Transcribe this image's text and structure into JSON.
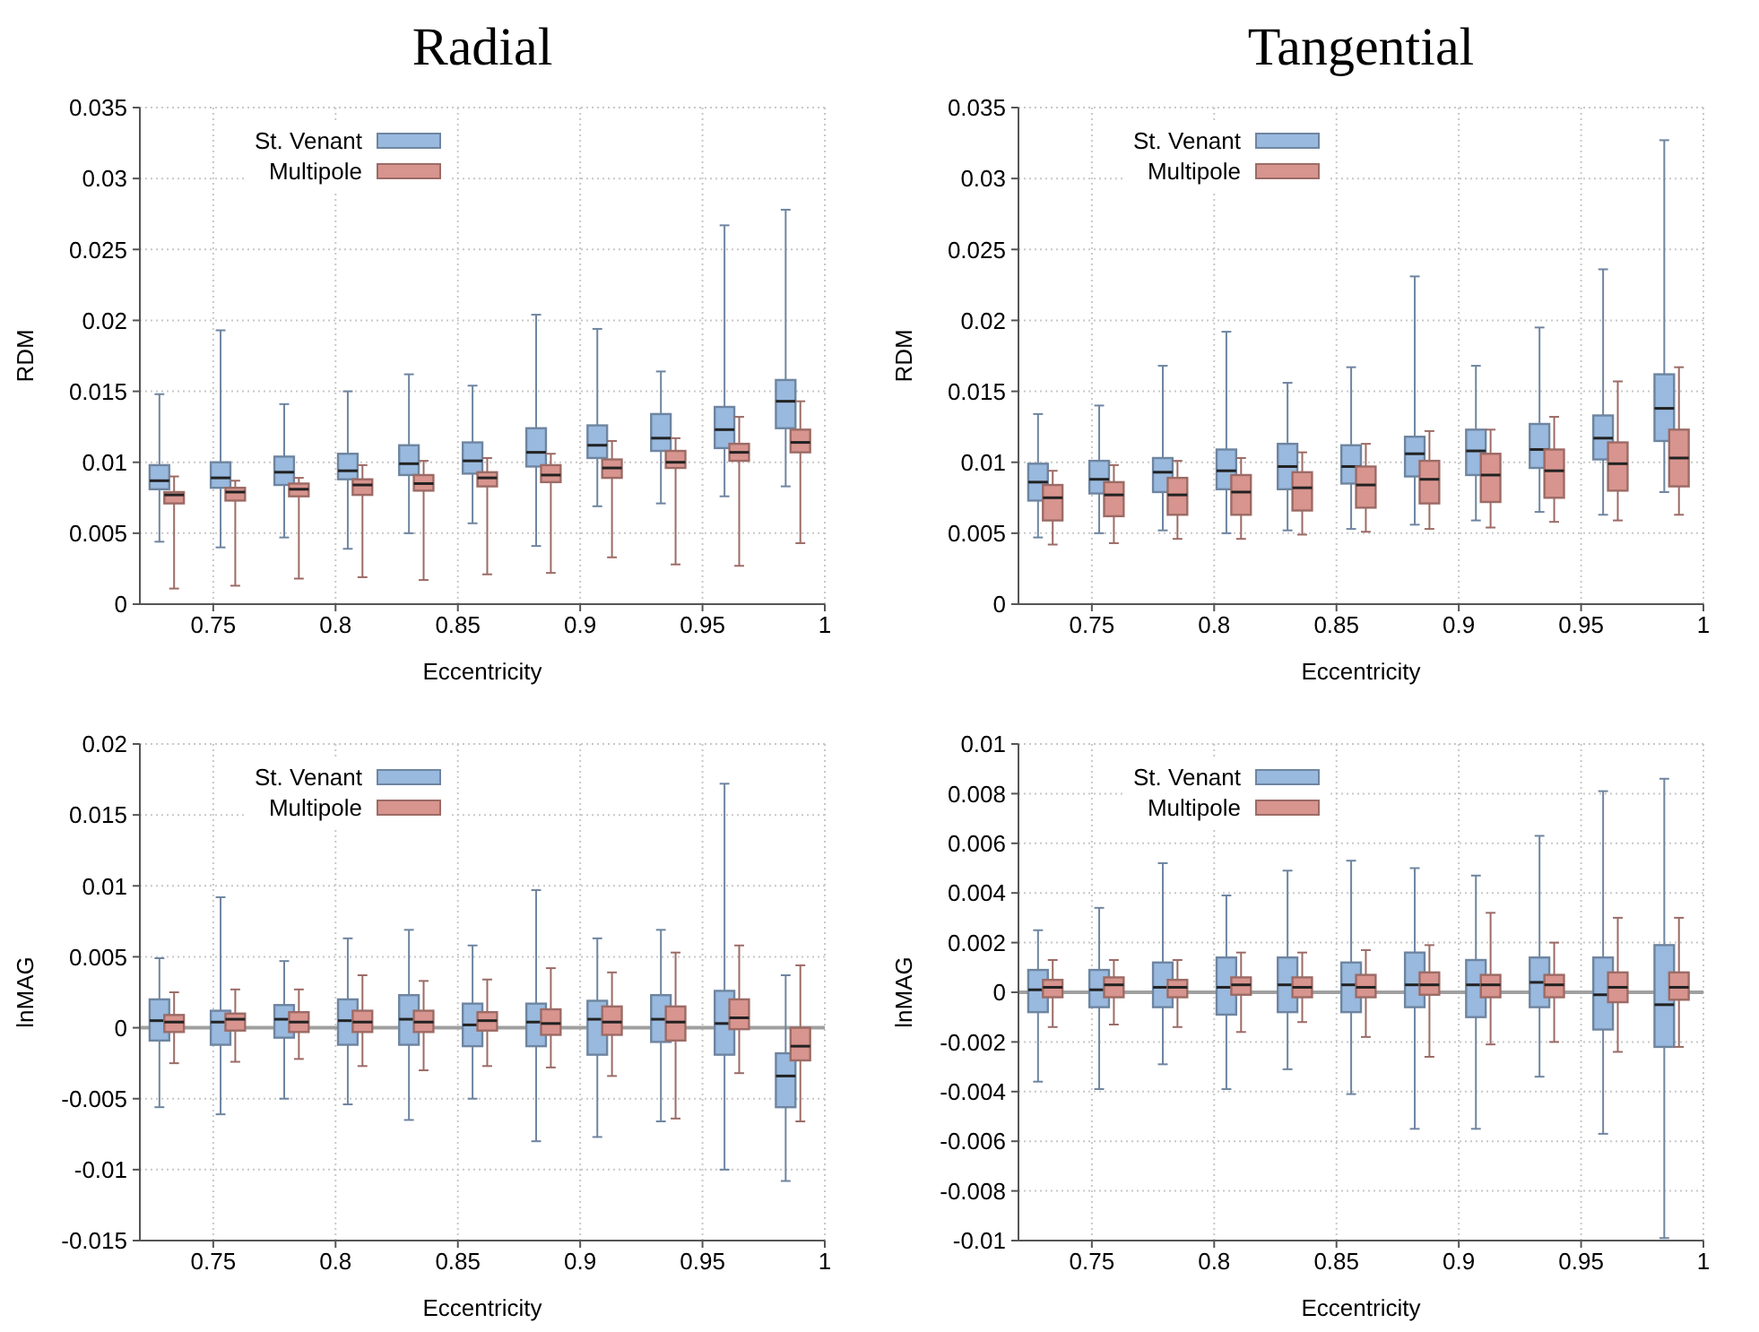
{
  "chart_data": [
    {
      "type": "box",
      "title": "Radial",
      "xlabel": "Eccentricity",
      "ylabel": "RDM",
      "xlim": [
        0.72,
        1
      ],
      "xticks": [
        0.75,
        0.8,
        0.85,
        0.9,
        0.95,
        1
      ],
      "ylim": [
        0,
        0.035
      ],
      "yticks": [
        0,
        0.005,
        0.01,
        0.015,
        0.02,
        0.025,
        0.03,
        0.035
      ],
      "grid": true,
      "legend": "top left",
      "series": [
        {
          "name": "St. Venant",
          "color": "#99b9de",
          "x": [
            0.728,
            0.753,
            0.779,
            0.805,
            0.83,
            0.856,
            0.882,
            0.907,
            0.933,
            0.959,
            0.984
          ],
          "boxes": [
            {
              "low": 0.0044,
              "q1": 0.0081,
              "median": 0.0087,
              "q3": 0.0098,
              "high": 0.0148
            },
            {
              "low": 0.004,
              "q1": 0.0082,
              "median": 0.0089,
              "q3": 0.01,
              "high": 0.0193
            },
            {
              "low": 0.0047,
              "q1": 0.0084,
              "median": 0.0093,
              "q3": 0.0104,
              "high": 0.0141
            },
            {
              "low": 0.0039,
              "q1": 0.0088,
              "median": 0.0094,
              "q3": 0.0106,
              "high": 0.015
            },
            {
              "low": 0.005,
              "q1": 0.0091,
              "median": 0.0099,
              "q3": 0.0112,
              "high": 0.0162
            },
            {
              "low": 0.0057,
              "q1": 0.0092,
              "median": 0.0101,
              "q3": 0.0114,
              "high": 0.0154
            },
            {
              "low": 0.0041,
              "q1": 0.0097,
              "median": 0.0107,
              "q3": 0.0124,
              "high": 0.0204
            },
            {
              "low": 0.0069,
              "q1": 0.0103,
              "median": 0.0112,
              "q3": 0.0126,
              "high": 0.0194
            },
            {
              "low": 0.0071,
              "q1": 0.0108,
              "median": 0.0117,
              "q3": 0.0134,
              "high": 0.0164
            },
            {
              "low": 0.0076,
              "q1": 0.011,
              "median": 0.0123,
              "q3": 0.0139,
              "high": 0.0267
            },
            {
              "low": 0.0083,
              "q1": 0.0124,
              "median": 0.0143,
              "q3": 0.0158,
              "high": 0.0278
            }
          ]
        },
        {
          "name": "Multipole",
          "color": "#d8948e",
          "x": [
            0.734,
            0.759,
            0.785,
            0.811,
            0.836,
            0.862,
            0.888,
            0.913,
            0.939,
            0.965,
            0.99
          ],
          "boxes": [
            {
              "low": 0.0011,
              "q1": 0.0071,
              "median": 0.0077,
              "q3": 0.0079,
              "high": 0.009
            },
            {
              "low": 0.0013,
              "q1": 0.0073,
              "median": 0.0079,
              "q3": 0.0082,
              "high": 0.0087
            },
            {
              "low": 0.0018,
              "q1": 0.0076,
              "median": 0.0081,
              "q3": 0.0085,
              "high": 0.0089
            },
            {
              "low": 0.0019,
              "q1": 0.0077,
              "median": 0.0084,
              "q3": 0.0088,
              "high": 0.0098
            },
            {
              "low": 0.0017,
              "q1": 0.008,
              "median": 0.0085,
              "q3": 0.0091,
              "high": 0.0101
            },
            {
              "low": 0.0021,
              "q1": 0.0083,
              "median": 0.0089,
              "q3": 0.0093,
              "high": 0.0103
            },
            {
              "low": 0.0022,
              "q1": 0.0086,
              "median": 0.0091,
              "q3": 0.0098,
              "high": 0.0106
            },
            {
              "low": 0.0033,
              "q1": 0.0089,
              "median": 0.0096,
              "q3": 0.0102,
              "high": 0.0115
            },
            {
              "low": 0.0028,
              "q1": 0.0096,
              "median": 0.01,
              "q3": 0.0108,
              "high": 0.0117
            },
            {
              "low": 0.0027,
              "q1": 0.0101,
              "median": 0.0107,
              "q3": 0.0113,
              "high": 0.0132
            },
            {
              "low": 0.0043,
              "q1": 0.0107,
              "median": 0.0114,
              "q3": 0.0123,
              "high": 0.0143
            }
          ]
        }
      ]
    },
    {
      "type": "box",
      "title": "Tangential",
      "xlabel": "Eccentricity",
      "ylabel": "RDM",
      "xlim": [
        0.72,
        1
      ],
      "xticks": [
        0.75,
        0.8,
        0.85,
        0.9,
        0.95,
        1
      ],
      "ylim": [
        0,
        0.035
      ],
      "yticks": [
        0,
        0.005,
        0.01,
        0.015,
        0.02,
        0.025,
        0.03,
        0.035
      ],
      "grid": true,
      "legend": "top left",
      "series": [
        {
          "name": "St. Venant",
          "color": "#99b9de",
          "x": [
            0.728,
            0.753,
            0.779,
            0.805,
            0.83,
            0.856,
            0.882,
            0.907,
            0.933,
            0.959,
            0.984
          ],
          "boxes": [
            {
              "low": 0.0047,
              "q1": 0.0073,
              "median": 0.0086,
              "q3": 0.0099,
              "high": 0.0134
            },
            {
              "low": 0.005,
              "q1": 0.0078,
              "median": 0.0088,
              "q3": 0.0101,
              "high": 0.014
            },
            {
              "low": 0.0052,
              "q1": 0.0079,
              "median": 0.0093,
              "q3": 0.0103,
              "high": 0.0168
            },
            {
              "low": 0.005,
              "q1": 0.0081,
              "median": 0.0094,
              "q3": 0.0109,
              "high": 0.0192
            },
            {
              "low": 0.0052,
              "q1": 0.0081,
              "median": 0.0097,
              "q3": 0.0113,
              "high": 0.0156
            },
            {
              "low": 0.0053,
              "q1": 0.0085,
              "median": 0.0097,
              "q3": 0.0112,
              "high": 0.0167
            },
            {
              "low": 0.0056,
              "q1": 0.009,
              "median": 0.0106,
              "q3": 0.0118,
              "high": 0.0231
            },
            {
              "low": 0.0059,
              "q1": 0.0091,
              "median": 0.0108,
              "q3": 0.0123,
              "high": 0.0168
            },
            {
              "low": 0.0065,
              "q1": 0.0096,
              "median": 0.0109,
              "q3": 0.0127,
              "high": 0.0195
            },
            {
              "low": 0.0063,
              "q1": 0.0102,
              "median": 0.0117,
              "q3": 0.0133,
              "high": 0.0236
            },
            {
              "low": 0.0079,
              "q1": 0.0115,
              "median": 0.0138,
              "q3": 0.0162,
              "high": 0.0327
            }
          ]
        },
        {
          "name": "Multipole",
          "color": "#d8948e",
          "x": [
            0.734,
            0.759,
            0.785,
            0.811,
            0.836,
            0.862,
            0.888,
            0.913,
            0.939,
            0.965,
            0.99
          ],
          "boxes": [
            {
              "low": 0.0042,
              "q1": 0.0059,
              "median": 0.0075,
              "q3": 0.0084,
              "high": 0.0094
            },
            {
              "low": 0.0043,
              "q1": 0.0062,
              "median": 0.0077,
              "q3": 0.0086,
              "high": 0.0098
            },
            {
              "low": 0.0046,
              "q1": 0.0063,
              "median": 0.0077,
              "q3": 0.0089,
              "high": 0.0101
            },
            {
              "low": 0.0046,
              "q1": 0.0063,
              "median": 0.0079,
              "q3": 0.0091,
              "high": 0.0103
            },
            {
              "low": 0.0049,
              "q1": 0.0066,
              "median": 0.0082,
              "q3": 0.0093,
              "high": 0.0107
            },
            {
              "low": 0.0051,
              "q1": 0.0068,
              "median": 0.0084,
              "q3": 0.0097,
              "high": 0.0113
            },
            {
              "low": 0.0053,
              "q1": 0.0071,
              "median": 0.0088,
              "q3": 0.0101,
              "high": 0.0122
            },
            {
              "low": 0.0054,
              "q1": 0.0072,
              "median": 0.0091,
              "q3": 0.0106,
              "high": 0.0123
            },
            {
              "low": 0.0058,
              "q1": 0.0075,
              "median": 0.0094,
              "q3": 0.0109,
              "high": 0.0132
            },
            {
              "low": 0.0059,
              "q1": 0.008,
              "median": 0.0099,
              "q3": 0.0114,
              "high": 0.0157
            },
            {
              "low": 0.0063,
              "q1": 0.0083,
              "median": 0.0103,
              "q3": 0.0123,
              "high": 0.0167
            }
          ]
        }
      ]
    },
    {
      "type": "box",
      "xlabel": "Eccentricity",
      "ylabel": "lnMAG",
      "xlim": [
        0.72,
        1
      ],
      "xticks": [
        0.75,
        0.8,
        0.85,
        0.9,
        0.95,
        1
      ],
      "ylim": [
        -0.015,
        0.02
      ],
      "yticks": [
        -0.015,
        -0.01,
        -0.005,
        0,
        0.005,
        0.01,
        0.015,
        0.02
      ],
      "grid": true,
      "legend": "top left",
      "ref_lines": [
        {
          "axis": "y",
          "value": 0,
          "color": "#a0a0a0"
        }
      ],
      "series": [
        {
          "name": "St. Venant",
          "color": "#99b9de",
          "x": [
            0.728,
            0.753,
            0.779,
            0.805,
            0.83,
            0.856,
            0.882,
            0.907,
            0.933,
            0.959,
            0.984
          ],
          "boxes": [
            {
              "low": -0.0056,
              "q1": -0.0009,
              "median": 0.0005,
              "q3": 0.002,
              "high": 0.0049
            },
            {
              "low": -0.0061,
              "q1": -0.0012,
              "median": 0.0004,
              "q3": 0.0012,
              "high": 0.0092
            },
            {
              "low": -0.005,
              "q1": -0.0007,
              "median": 0.0006,
              "q3": 0.0016,
              "high": 0.0047
            },
            {
              "low": -0.0054,
              "q1": -0.0012,
              "median": 0.0005,
              "q3": 0.002,
              "high": 0.0063
            },
            {
              "low": -0.0065,
              "q1": -0.0012,
              "median": 0.0006,
              "q3": 0.0023,
              "high": 0.0069
            },
            {
              "low": -0.005,
              "q1": -0.0013,
              "median": 0.0002,
              "q3": 0.0017,
              "high": 0.0058
            },
            {
              "low": -0.008,
              "q1": -0.0013,
              "median": 0.0004,
              "q3": 0.0017,
              "high": 0.0097
            },
            {
              "low": -0.0077,
              "q1": -0.0019,
              "median": 0.0006,
              "q3": 0.0019,
              "high": 0.0063
            },
            {
              "low": -0.0066,
              "q1": -0.001,
              "median": 0.0006,
              "q3": 0.0023,
              "high": 0.0069
            },
            {
              "low": -0.01,
              "q1": -0.0019,
              "median": 0.0003,
              "q3": 0.0026,
              "high": 0.0172
            },
            {
              "low": -0.0108,
              "q1": -0.0056,
              "median": -0.0034,
              "q3": -0.0018,
              "high": 0.0037
            }
          ]
        },
        {
          "name": "Multipole",
          "color": "#d8948e",
          "x": [
            0.734,
            0.759,
            0.785,
            0.811,
            0.836,
            0.862,
            0.888,
            0.913,
            0.939,
            0.965,
            0.99
          ],
          "boxes": [
            {
              "low": -0.0025,
              "q1": -0.0003,
              "median": 0.0004,
              "q3": 0.0009,
              "high": 0.0025
            },
            {
              "low": -0.0024,
              "q1": -0.0002,
              "median": 0.0006,
              "q3": 0.001,
              "high": 0.0027
            },
            {
              "low": -0.0022,
              "q1": -0.0003,
              "median": 0.0004,
              "q3": 0.0011,
              "high": 0.0027
            },
            {
              "low": -0.0027,
              "q1": -0.0003,
              "median": 0.0004,
              "q3": 0.0012,
              "high": 0.0037
            },
            {
              "low": -0.003,
              "q1": -0.0003,
              "median": 0.0004,
              "q3": 0.0012,
              "high": 0.0033
            },
            {
              "low": -0.0027,
              "q1": -0.0002,
              "median": 0.0005,
              "q3": 0.0011,
              "high": 0.0034
            },
            {
              "low": -0.0028,
              "q1": -0.0005,
              "median": 0.0003,
              "q3": 0.0013,
              "high": 0.0042
            },
            {
              "low": -0.0034,
              "q1": -0.0005,
              "median": 0.0004,
              "q3": 0.0015,
              "high": 0.0039
            },
            {
              "low": -0.0064,
              "q1": -0.0009,
              "median": 0.0004,
              "q3": 0.0015,
              "high": 0.0053
            },
            {
              "low": -0.0032,
              "q1": -0.0001,
              "median": 0.0007,
              "q3": 0.002,
              "high": 0.0058
            },
            {
              "low": -0.0066,
              "q1": -0.0023,
              "median": -0.0013,
              "q3": 0,
              "high": 0.0044
            }
          ]
        }
      ]
    },
    {
      "type": "box",
      "xlabel": "Eccentricity",
      "ylabel": "lnMAG",
      "xlim": [
        0.72,
        1
      ],
      "xticks": [
        0.75,
        0.8,
        0.85,
        0.9,
        0.95,
        1
      ],
      "ylim": [
        -0.01,
        0.01
      ],
      "yticks": [
        -0.01,
        -0.008,
        -0.006,
        -0.004,
        -0.002,
        0,
        0.002,
        0.004,
        0.006,
        0.008,
        0.01
      ],
      "grid": true,
      "legend": "top left",
      "ref_lines": [
        {
          "axis": "y",
          "value": 0,
          "color": "#a0a0a0"
        }
      ],
      "series": [
        {
          "name": "St. Venant",
          "color": "#99b9de",
          "x": [
            0.728,
            0.753,
            0.779,
            0.805,
            0.83,
            0.856,
            0.882,
            0.907,
            0.933,
            0.959,
            0.984
          ],
          "boxes": [
            {
              "low": -0.0036,
              "q1": -0.0008,
              "median": 0.0001,
              "q3": 0.0009,
              "high": 0.0025
            },
            {
              "low": -0.0039,
              "q1": -0.0006,
              "median": 0.0001,
              "q3": 0.0009,
              "high": 0.0034
            },
            {
              "low": -0.0029,
              "q1": -0.0006,
              "median": 0.0002,
              "q3": 0.0012,
              "high": 0.0052
            },
            {
              "low": -0.0039,
              "q1": -0.0009,
              "median": 0.0002,
              "q3": 0.0014,
              "high": 0.0039
            },
            {
              "low": -0.0031,
              "q1": -0.0008,
              "median": 0.0003,
              "q3": 0.0014,
              "high": 0.0049
            },
            {
              "low": -0.0041,
              "q1": -0.0008,
              "median": 0.0003,
              "q3": 0.0012,
              "high": 0.0053
            },
            {
              "low": -0.0055,
              "q1": -0.0006,
              "median": 0.0003,
              "q3": 0.0016,
              "high": 0.005
            },
            {
              "low": -0.0055,
              "q1": -0.001,
              "median": 0.0003,
              "q3": 0.0013,
              "high": 0.0047
            },
            {
              "low": -0.0034,
              "q1": -0.0006,
              "median": 0.0004,
              "q3": 0.0014,
              "high": 0.0063
            },
            {
              "low": -0.0057,
              "q1": -0.0015,
              "median": -0.0001,
              "q3": 0.0014,
              "high": 0.0081
            },
            {
              "low": -0.0099,
              "q1": -0.0022,
              "median": -0.0005,
              "q3": 0.0019,
              "high": 0.0086
            }
          ]
        },
        {
          "name": "Multipole",
          "color": "#d8948e",
          "x": [
            0.734,
            0.759,
            0.785,
            0.811,
            0.836,
            0.862,
            0.888,
            0.913,
            0.939,
            0.965,
            0.99
          ],
          "boxes": [
            {
              "low": -0.0014,
              "q1": -0.0002,
              "median": 0.0002,
              "q3": 0.0005,
              "high": 0.0013
            },
            {
              "low": -0.0013,
              "q1": -0.0002,
              "median": 0.0003,
              "q3": 0.0006,
              "high": 0.0013
            },
            {
              "low": -0.0014,
              "q1": -0.0002,
              "median": 0.0002,
              "q3": 0.0005,
              "high": 0.0013
            },
            {
              "low": -0.0016,
              "q1": -0.0001,
              "median": 0.0003,
              "q3": 0.0006,
              "high": 0.0016
            },
            {
              "low": -0.0012,
              "q1": -0.0002,
              "median": 0.0002,
              "q3": 0.0006,
              "high": 0.0016
            },
            {
              "low": -0.0018,
              "q1": -0.0002,
              "median": 0.0002,
              "q3": 0.0007,
              "high": 0.0017
            },
            {
              "low": -0.0026,
              "q1": -0.0001,
              "median": 0.0003,
              "q3": 0.0008,
              "high": 0.0019
            },
            {
              "low": -0.0021,
              "q1": -0.0002,
              "median": 0.0003,
              "q3": 0.0007,
              "high": 0.0032
            },
            {
              "low": -0.002,
              "q1": -0.0002,
              "median": 0.0003,
              "q3": 0.0007,
              "high": 0.002
            },
            {
              "low": -0.0024,
              "q1": -0.0004,
              "median": 0.0002,
              "q3": 0.0008,
              "high": 0.003
            },
            {
              "low": -0.0022,
              "q1": -0.0003,
              "median": 0.0002,
              "q3": 0.0008,
              "high": 0.003
            }
          ]
        }
      ]
    }
  ]
}
